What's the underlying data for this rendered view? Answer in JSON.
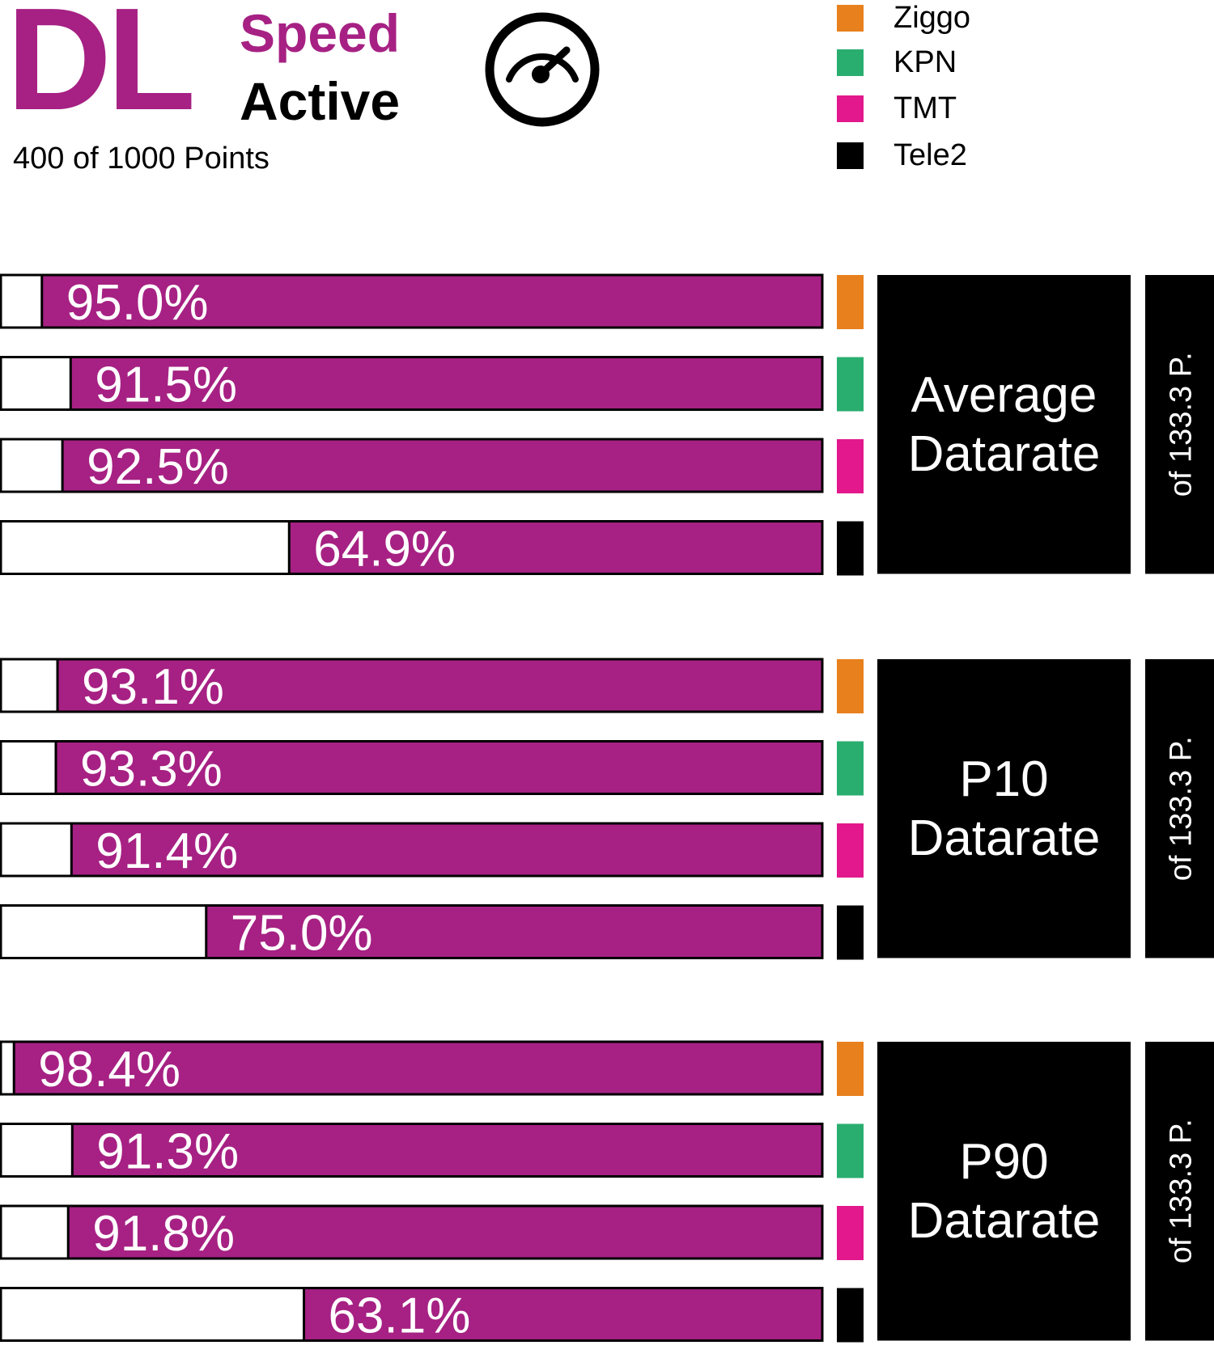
{
  "header": {
    "dl": "DL",
    "speed": "Speed",
    "active": "Active",
    "points": "400 of 1000 Points"
  },
  "colors": {
    "brand": "#a62183",
    "bar_fill": "#a62183",
    "panel": "#000000",
    "Ziggo": "#e8801e",
    "KPN": "#2aae70",
    "TMT": "#e2188c",
    "Tele2": "#000000"
  },
  "icons": {
    "gauge": "speedometer-icon"
  },
  "legend": [
    {
      "label": "Ziggo",
      "color": "#e8801e"
    },
    {
      "label": "KPN",
      "color": "#2aae70"
    },
    {
      "label": "TMT",
      "color": "#e2188c"
    },
    {
      "label": "Tele2",
      "color": "#000000"
    }
  ],
  "chart_data": {
    "type": "bar",
    "orientation": "horizontal",
    "value_unit": "%",
    "xlim": [
      0,
      100
    ],
    "categories": [
      "Ziggo",
      "KPN",
      "TMT",
      "Tele2"
    ],
    "groups": [
      {
        "title_lines": [
          "Average",
          "Datarate"
        ],
        "note": "of 133.3 P.",
        "values": [
          95.0,
          91.5,
          92.5,
          64.9
        ],
        "labels": [
          "95.0%",
          "91.5%",
          "92.5%",
          "64.9%"
        ]
      },
      {
        "title_lines": [
          "P10",
          "Datarate"
        ],
        "note": "of 133.3 P.",
        "values": [
          93.1,
          93.3,
          91.4,
          75.0
        ],
        "labels": [
          "93.1%",
          "93.3%",
          "91.4%",
          "75.0%"
        ]
      },
      {
        "title_lines": [
          "P90",
          "Datarate"
        ],
        "note": "of 133.3 P.",
        "values": [
          98.4,
          91.3,
          91.8,
          63.1
        ],
        "labels": [
          "98.4%",
          "91.3%",
          "91.8%",
          "63.1%"
        ]
      }
    ]
  }
}
